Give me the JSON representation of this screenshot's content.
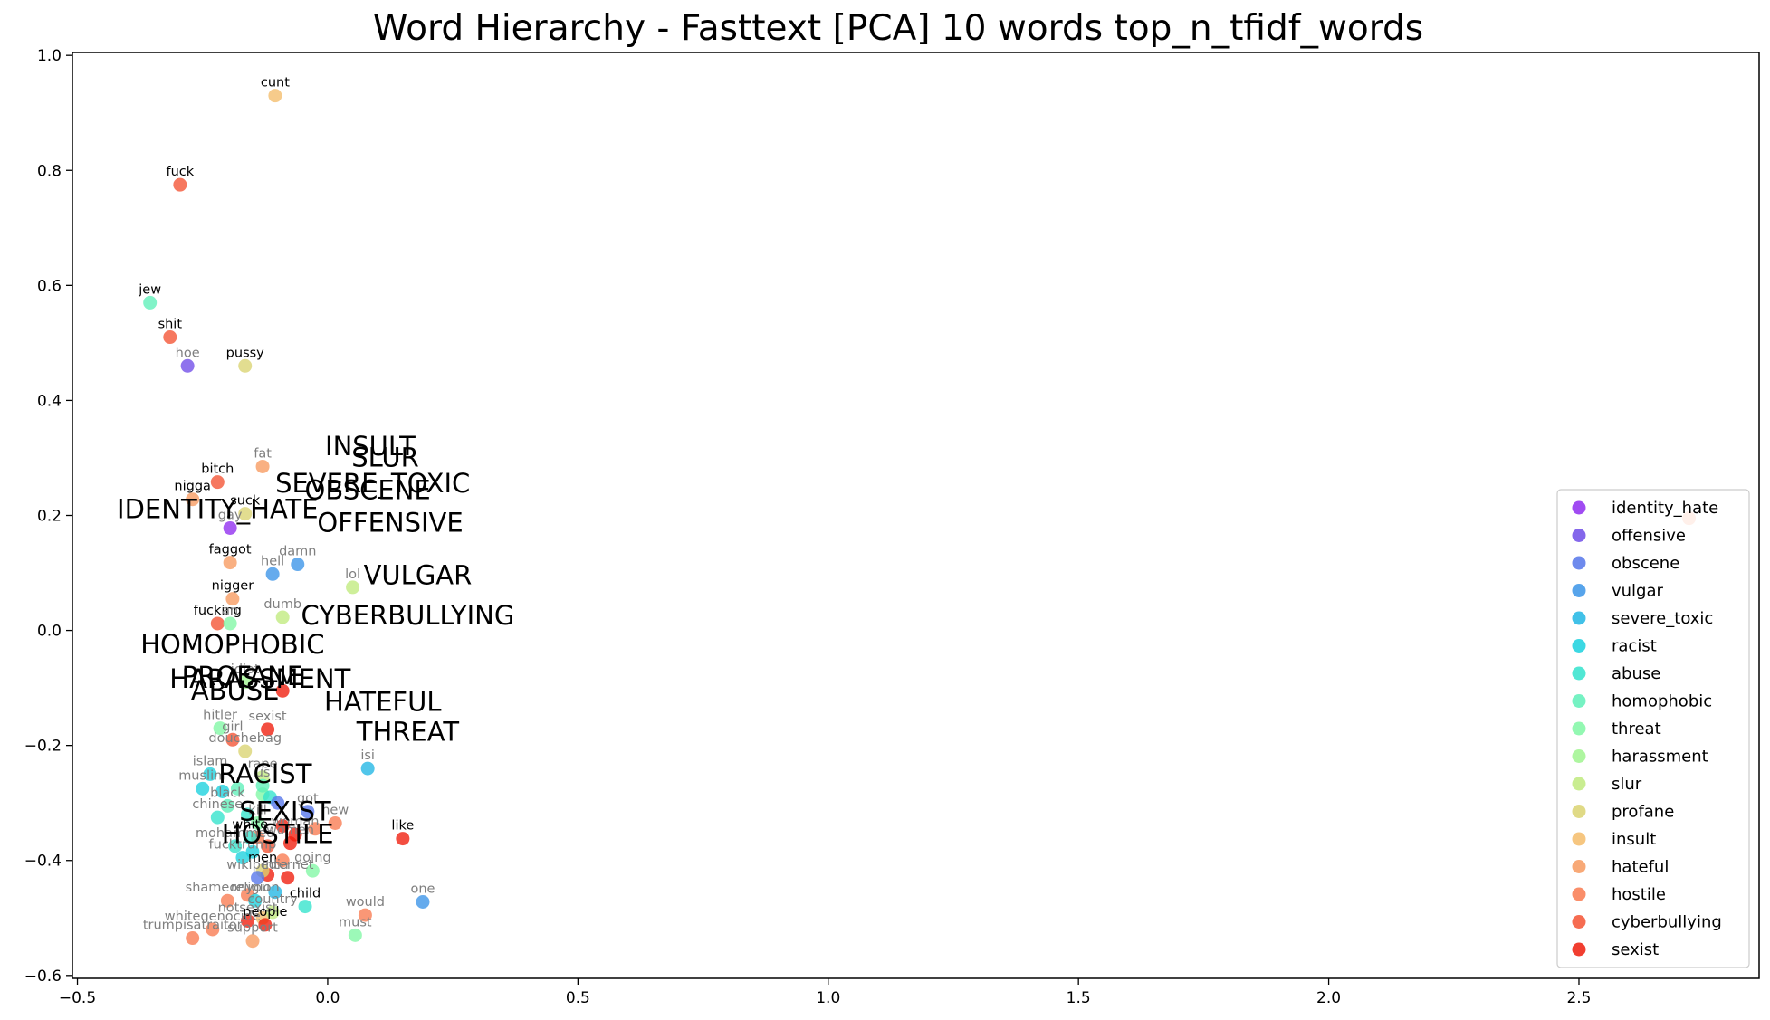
{
  "chart_data": {
    "type": "scatter",
    "title": "Word Hierarchy - Fasttext [PCA] 10 words top_n_tfidf_words",
    "xlabel": "",
    "ylabel": "",
    "xlim": [
      -0.51,
      2.86
    ],
    "ylim": [
      -0.605,
      1.005
    ],
    "x_ticks": [
      {
        "v": -0.5,
        "label": "−0.5"
      },
      {
        "v": 0.0,
        "label": "0.0"
      },
      {
        "v": 0.5,
        "label": "0.5"
      },
      {
        "v": 1.0,
        "label": "1.0"
      },
      {
        "v": 1.5,
        "label": "1.5"
      },
      {
        "v": 2.0,
        "label": "2.0"
      },
      {
        "v": 2.5,
        "label": "2.5"
      }
    ],
    "y_ticks": [
      {
        "v": -0.6,
        "label": "−0.6"
      },
      {
        "v": -0.4,
        "label": "−0.4"
      },
      {
        "v": -0.2,
        "label": "−0.2"
      },
      {
        "v": 0.0,
        "label": "0.0"
      },
      {
        "v": 0.2,
        "label": "0.2"
      },
      {
        "v": 0.4,
        "label": "0.4"
      },
      {
        "v": 0.6,
        "label": "0.6"
      },
      {
        "v": 0.8,
        "label": "0.8"
      },
      {
        "v": 1.0,
        "label": "1.0"
      }
    ],
    "grid": false,
    "legend_position": "right",
    "series": [
      {
        "name": "identity_hate",
        "color": "#8f2cf0"
      },
      {
        "name": "offensive",
        "color": "#6f4ce8"
      },
      {
        "name": "obscene",
        "color": "#5575ea"
      },
      {
        "name": "vulgar",
        "color": "#3a94e8"
      },
      {
        "name": "severe_toxic",
        "color": "#20b6e4"
      },
      {
        "name": "racist",
        "color": "#1ad1de"
      },
      {
        "name": "abuse",
        "color": "#32e3cc"
      },
      {
        "name": "homophobic",
        "color": "#5ef0b8"
      },
      {
        "name": "threat",
        "color": "#80f7a4"
      },
      {
        "name": "harassment",
        "color": "#a0f58f"
      },
      {
        "name": "slur",
        "color": "#c0ea7e"
      },
      {
        "name": "profane",
        "color": "#dad471"
      },
      {
        "name": "insult",
        "color": "#f4bc6a"
      },
      {
        "name": "hateful",
        "color": "#f79a5f"
      },
      {
        "name": "hostile",
        "color": "#f97a50"
      },
      {
        "name": "cyberbullying",
        "color": "#f45232"
      },
      {
        "name": "sexist",
        "color": "#ef1c0c"
      }
    ],
    "points": [
      {
        "word": "cunt",
        "x": -0.105,
        "y": 0.93,
        "series": "insult",
        "dark": true
      },
      {
        "word": "fuck",
        "x": -0.295,
        "y": 0.775,
        "series": "cyberbullying",
        "dark": true
      },
      {
        "word": "jew",
        "x": -0.355,
        "y": 0.57,
        "series": "homophobic",
        "dark": true
      },
      {
        "word": "shit",
        "x": -0.315,
        "y": 0.51,
        "series": "cyberbullying",
        "dark": true
      },
      {
        "word": "hoe",
        "x": -0.28,
        "y": 0.46,
        "series": "offensive",
        "dark": false
      },
      {
        "word": "pussy",
        "x": -0.165,
        "y": 0.46,
        "series": "profane",
        "dark": true
      },
      {
        "word": "fat",
        "x": -0.13,
        "y": 0.285,
        "series": "hateful",
        "dark": false
      },
      {
        "word": "bitch",
        "x": -0.22,
        "y": 0.258,
        "series": "cyberbullying",
        "dark": true
      },
      {
        "word": "nigga",
        "x": -0.27,
        "y": 0.228,
        "series": "hateful",
        "dark": true
      },
      {
        "word": "suck",
        "x": -0.165,
        "y": 0.203,
        "series": "profane",
        "dark": true
      },
      {
        "word": "gay",
        "x": -0.195,
        "y": 0.178,
        "series": "identity_hate",
        "dark": false
      },
      {
        "word": "faggot",
        "x": -0.195,
        "y": 0.118,
        "series": "hateful",
        "dark": true
      },
      {
        "word": "damn",
        "x": -0.06,
        "y": 0.115,
        "series": "vulgar",
        "dark": false
      },
      {
        "word": "hell",
        "x": -0.11,
        "y": 0.098,
        "series": "vulgar",
        "dark": false
      },
      {
        "word": "lol",
        "x": 0.05,
        "y": 0.075,
        "series": "slur",
        "dark": false
      },
      {
        "word": "nigger",
        "x": -0.19,
        "y": 0.055,
        "series": "hateful",
        "dark": true
      },
      {
        "word": "dumb",
        "x": -0.09,
        "y": 0.023,
        "series": "slur",
        "dark": false
      },
      {
        "word": "fucking",
        "x": -0.22,
        "y": 0.012,
        "series": "cyberbullying",
        "dark": true
      },
      {
        "word": "idiot",
        "x": -0.165,
        "y": -0.09,
        "series": "harassment",
        "dark": false
      },
      {
        "word": "sexist",
        "x": -0.12,
        "y": -0.172,
        "series": "sexist",
        "dark": false
      },
      {
        "word": "hitler",
        "x": -0.215,
        "y": -0.17,
        "series": "threat",
        "dark": false
      },
      {
        "word": "douchebag",
        "x": -0.165,
        "y": -0.21,
        "series": "profane",
        "dark": false
      },
      {
        "word": "islam",
        "x": -0.235,
        "y": -0.25,
        "series": "racist",
        "dark": false
      },
      {
        "word": "isi",
        "x": 0.08,
        "y": -0.24,
        "series": "severe_toxic",
        "dark": false
      },
      {
        "word": "muslim",
        "x": -0.25,
        "y": -0.275,
        "series": "racist",
        "dark": false
      },
      {
        "word": "chinese",
        "x": -0.22,
        "y": -0.325,
        "series": "abuse",
        "dark": false
      },
      {
        "word": "got",
        "x": -0.04,
        "y": -0.315,
        "series": "obscene",
        "dark": false
      },
      {
        "word": "white",
        "x": -0.155,
        "y": -0.36,
        "series": "abuse",
        "dark": true
      },
      {
        "word": "like",
        "x": 0.15,
        "y": -0.362,
        "series": "sexist",
        "dark": true
      },
      {
        "word": "new",
        "x": 0.015,
        "y": -0.335,
        "series": "hostile",
        "dark": false
      },
      {
        "word": "mohammed",
        "x": -0.185,
        "y": -0.375,
        "series": "abuse",
        "dark": false
      },
      {
        "word": "fucktrump",
        "x": -0.17,
        "y": -0.395,
        "series": "racist",
        "dark": false
      },
      {
        "word": "going",
        "x": -0.03,
        "y": -0.418,
        "series": "threat",
        "dark": false
      },
      {
        "word": "men",
        "x": -0.13,
        "y": -0.418,
        "series": "profane",
        "dark": true
      },
      {
        "word": "wikipedia",
        "x": -0.14,
        "y": -0.43,
        "series": "obscene",
        "dark": false
      },
      {
        "word": "internet",
        "x": -0.08,
        "y": -0.43,
        "series": "sexist",
        "dark": false
      },
      {
        "word": "shameonyou",
        "x": -0.2,
        "y": -0.47,
        "series": "hostile",
        "dark": false
      },
      {
        "word": "religion",
        "x": -0.145,
        "y": -0.47,
        "series": "racist",
        "dark": false
      },
      {
        "word": "child",
        "x": -0.045,
        "y": -0.48,
        "series": "abuse",
        "dark": true
      },
      {
        "word": "country",
        "x": -0.11,
        "y": -0.49,
        "series": "slur",
        "dark": false
      },
      {
        "word": "one",
        "x": 0.19,
        "y": -0.472,
        "series": "vulgar",
        "dark": false
      },
      {
        "word": "would",
        "x": 0.075,
        "y": -0.495,
        "series": "hostile",
        "dark": false
      },
      {
        "word": "notsexist",
        "x": -0.16,
        "y": -0.505,
        "series": "sexist",
        "dark": false
      },
      {
        "word": "people",
        "x": -0.125,
        "y": -0.512,
        "series": "sexist",
        "dark": true
      },
      {
        "word": "whitegenocide",
        "x": -0.23,
        "y": -0.52,
        "series": "hostile",
        "dark": false
      },
      {
        "word": "must",
        "x": 0.055,
        "y": -0.53,
        "series": "threat",
        "dark": false
      },
      {
        "word": "trumpisatraitor",
        "x": -0.27,
        "y": -0.535,
        "series": "hostile",
        "dark": false
      },
      {
        "word": "support",
        "x": -0.15,
        "y": -0.54,
        "series": "hateful",
        "dark": false
      },
      {
        "word": "an",
        "x": -0.195,
        "y": 0.012,
        "series": "threat",
        "dark": false
      },
      {
        "word": "girl",
        "x": -0.19,
        "y": -0.19,
        "series": "cyberbullying",
        "dark": false
      },
      {
        "word": "rape",
        "x": -0.13,
        "y": -0.255,
        "series": "slur",
        "dark": false
      },
      {
        "word": "black",
        "x": -0.2,
        "y": -0.305,
        "series": "homophobic",
        "dark": false
      },
      {
        "word": "kill",
        "x": -0.14,
        "y": -0.335,
        "series": "threat",
        "dark": false
      },
      {
        "word": "us",
        "x": -0.13,
        "y": -0.27,
        "series": "homophobic",
        "dark": false
      },
      {
        "word": "woman",
        "x": -0.065,
        "y": -0.355,
        "series": "sexist",
        "dark": false
      },
      {
        "word": "women",
        "x": -0.075,
        "y": -0.37,
        "series": "sexist",
        "dark": false
      }
    ],
    "unlabeled_points": [
      {
        "x": -0.09,
        "y": -0.105,
        "series": "sexist"
      },
      {
        "x": -0.13,
        "y": -0.285,
        "series": "threat"
      },
      {
        "x": -0.115,
        "y": -0.29,
        "series": "abuse"
      },
      {
        "x": -0.18,
        "y": -0.275,
        "series": "homophobic"
      },
      {
        "x": -0.21,
        "y": -0.28,
        "series": "racist"
      },
      {
        "x": -0.1,
        "y": -0.3,
        "series": "obscene"
      },
      {
        "x": -0.16,
        "y": -0.32,
        "series": "abuse"
      },
      {
        "x": -0.14,
        "y": -0.36,
        "series": "hostile"
      },
      {
        "x": -0.025,
        "y": -0.345,
        "series": "hostile"
      },
      {
        "x": -0.09,
        "y": -0.34,
        "series": "sexist"
      },
      {
        "x": -0.12,
        "y": -0.375,
        "series": "cyberbullying"
      },
      {
        "x": -0.15,
        "y": -0.385,
        "series": "racist"
      },
      {
        "x": -0.09,
        "y": -0.4,
        "series": "hostile"
      },
      {
        "x": -0.12,
        "y": -0.425,
        "series": "sexist"
      },
      {
        "x": -0.105,
        "y": -0.455,
        "series": "severe_toxic"
      },
      {
        "x": -0.13,
        "y": -0.5,
        "series": "insult"
      },
      {
        "x": -0.16,
        "y": -0.46,
        "series": "hostile"
      },
      {
        "x": 2.72,
        "y": 0.195,
        "series": "hostile"
      }
    ],
    "annotations": [
      {
        "text": "INSULT",
        "x": 0.085,
        "y": 0.305
      },
      {
        "text": "SLUR",
        "x": 0.115,
        "y": 0.285
      },
      {
        "text": "SEVERE_TOXIC",
        "x": 0.09,
        "y": 0.24
      },
      {
        "text": "OBSCENE",
        "x": 0.08,
        "y": 0.228
      },
      {
        "text": "IDENTITY_HATE",
        "x": -0.22,
        "y": 0.195
      },
      {
        "text": "OFFENSIVE",
        "x": 0.125,
        "y": 0.172
      },
      {
        "text": "VULGAR",
        "x": 0.18,
        "y": 0.08
      },
      {
        "text": "CYBERBULLYING",
        "x": 0.16,
        "y": 0.01
      },
      {
        "text": "HOMOPHOBIC",
        "x": -0.19,
        "y": -0.04
      },
      {
        "text": "PROFANE",
        "x": -0.17,
        "y": -0.095
      },
      {
        "text": "HARASSMENT",
        "x": -0.135,
        "y": -0.1
      },
      {
        "text": "ABUSE",
        "x": -0.185,
        "y": -0.12
      },
      {
        "text": "HATEFUL",
        "x": 0.11,
        "y": -0.14
      },
      {
        "text": "THREAT",
        "x": 0.16,
        "y": -0.192
      },
      {
        "text": "RACIST",
        "x": -0.125,
        "y": -0.265
      },
      {
        "text": "SEXIST",
        "x": -0.085,
        "y": -0.33
      },
      {
        "text": "HOSTILE",
        "x": -0.1,
        "y": -0.37
      }
    ]
  }
}
